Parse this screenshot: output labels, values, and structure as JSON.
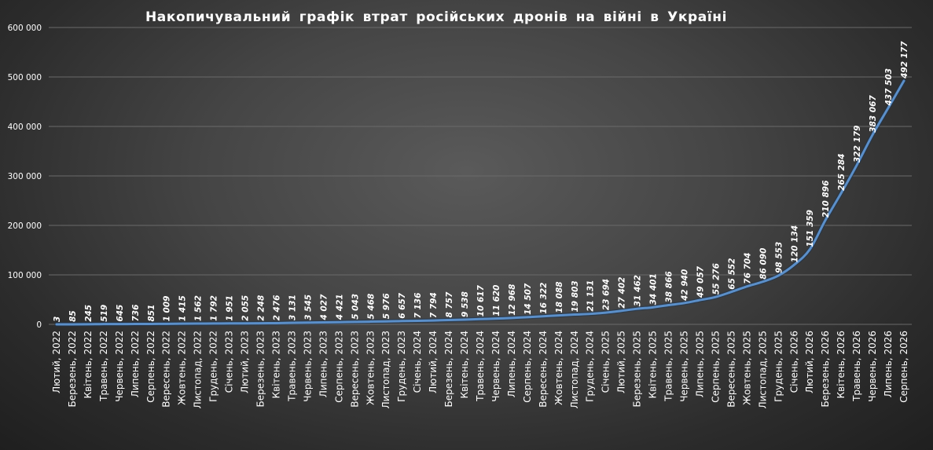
{
  "chart_data": {
    "type": "line",
    "title": "Накопичувальний графік втрат російських дронів на війні в Україні",
    "xlabel": "",
    "ylabel": "",
    "ylim": [
      0,
      600000
    ],
    "yticks": [
      0,
      100000,
      200000,
      300000,
      400000,
      500000,
      600000
    ],
    "ytick_labels": [
      "0",
      "100 000",
      "200 000",
      "300 000",
      "400 000",
      "500 000",
      "600 000"
    ],
    "grid": true,
    "legend": "none",
    "line_color": "#5b8fc9",
    "categories": [
      "Лютий, 2022",
      "Березень, 2022",
      "Квітень, 2022",
      "Травень, 2022",
      "Червень, 2022",
      "Липень, 2022",
      "Серпень, 2022",
      "Вересень, 2022",
      "Жовтень, 2022",
      "Листопад, 2022",
      "Грудень, 2022",
      "Січень, 2023",
      "Лютий, 2023",
      "Березень, 2023",
      "Квітень, 2023",
      "Травень, 2023",
      "Червень, 2023",
      "Липень, 2023",
      "Серпень, 2023",
      "Вересень, 2023",
      "Жовтень, 2023",
      "Листопад, 2023",
      "Грудень, 2023",
      "Січень, 2024",
      "Лютий, 2024",
      "Березень, 2024",
      "Квітень, 2024",
      "Травень, 2024",
      "Червень, 2024",
      "Липень, 2024",
      "Серпень, 2024",
      "Вересень, 2024",
      "Жовтень, 2024",
      "Листопад, 2024",
      "Грудень, 2024",
      "Січень, 2025",
      "Лютий, 2025",
      "Березень, 2025",
      "Квітень, 2025",
      "Травень, 2025",
      "Червень, 2025",
      "Липень, 2025",
      "Серпень, 2025",
      "Вересень, 2025",
      "Жовтень, 2025",
      "Листопад, 2025",
      "Грудень, 2025",
      "Січень, 2026",
      "Лютий, 2026",
      "Березень, 2026",
      "Квітень, 2026",
      "Травень, 2026",
      "Червень, 2026",
      "Липень, 2026",
      "Серпень, 2026"
    ],
    "values": [
      3,
      85,
      245,
      519,
      645,
      736,
      851,
      1009,
      1415,
      1562,
      1792,
      1951,
      2055,
      2248,
      2476,
      3131,
      3545,
      4027,
      4421,
      5043,
      5468,
      5976,
      6657,
      7136,
      7794,
      8757,
      9538,
      10617,
      11620,
      12968,
      14507,
      16322,
      18088,
      19803,
      21131,
      23694,
      27402,
      31462,
      34401,
      38866,
      42940,
      49057,
      55276,
      65552,
      76704,
      86090,
      98553,
      120134,
      151359,
      210896,
      265284,
      322179,
      383067,
      437503,
      492177
    ],
    "value_labels": [
      "3",
      "85",
      "245",
      "519",
      "645",
      "736",
      "851",
      "1 009",
      "1 415",
      "1 562",
      "1 792",
      "1 951",
      "2 055",
      "2 248",
      "2 476",
      "3 131",
      "3 545",
      "4 027",
      "4 421",
      "5 043",
      "5 468",
      "5 976",
      "6 657",
      "7 136",
      "7 794",
      "8 757",
      "9 538",
      "10 617",
      "11 620",
      "12 968",
      "14 507",
      "16 322",
      "18 088",
      "19 803",
      "21 131",
      "23 694",
      "27 402",
      "31 462",
      "34 401",
      "38 866",
      "42 940",
      "49 057",
      "55 276",
      "65 552",
      "76 704",
      "86 090",
      "98 553",
      "120 134",
      "151 359",
      "210 896",
      "265 284",
      "322 179",
      "383 067",
      "437 503",
      "492 177"
    ]
  }
}
